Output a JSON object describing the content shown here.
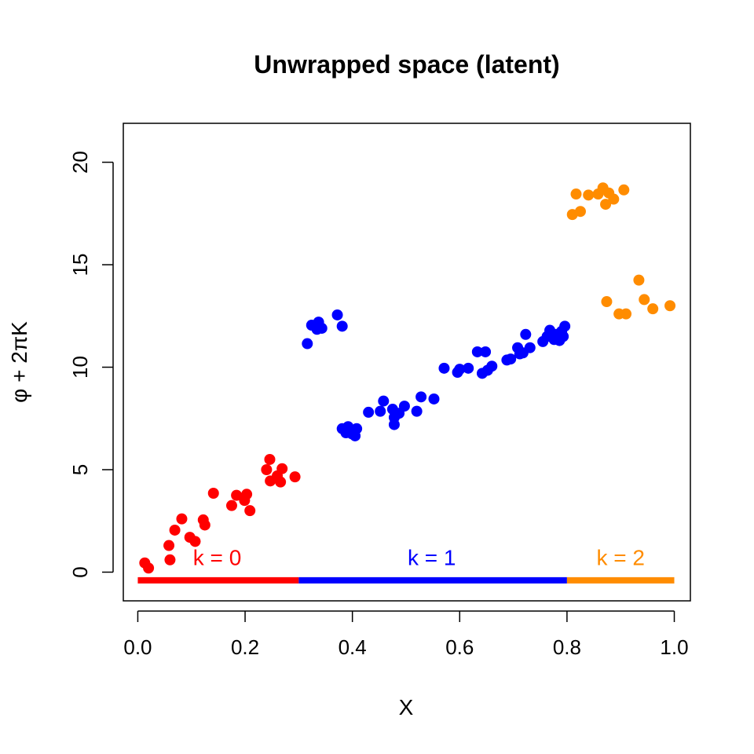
{
  "chart_data": {
    "type": "scatter",
    "title": "Unwrapped space (latent)",
    "xlabel": "X",
    "ylabel": "φ + 2πK",
    "xlim": [
      -0.027,
      1.03
    ],
    "ylim": [
      -1.4,
      21.9
    ],
    "x_ticks": [
      0.0,
      0.2,
      0.4,
      0.6,
      0.8,
      1.0
    ],
    "x_tick_labels": [
      "0.0",
      "0.2",
      "0.4",
      "0.6",
      "0.8",
      "1.0"
    ],
    "y_ticks": [
      0,
      5,
      10,
      15,
      20
    ],
    "y_tick_labels": [
      "0",
      "5",
      "10",
      "15",
      "20"
    ],
    "grid": false,
    "legend": "none",
    "series": [
      {
        "color": "#ff0000",
        "points": [
          [
            0.013,
            0.45
          ],
          [
            0.02,
            0.2
          ],
          [
            0.058,
            1.3
          ],
          [
            0.06,
            0.6
          ],
          [
            0.069,
            2.05
          ],
          [
            0.082,
            2.6
          ],
          [
            0.097,
            1.7
          ],
          [
            0.107,
            1.5
          ],
          [
            0.122,
            2.55
          ],
          [
            0.125,
            2.3
          ],
          [
            0.141,
            3.85
          ],
          [
            0.175,
            3.25
          ],
          [
            0.184,
            3.75
          ],
          [
            0.199,
            3.5
          ],
          [
            0.203,
            3.8
          ],
          [
            0.209,
            3.0
          ],
          [
            0.24,
            5.0
          ],
          [
            0.246,
            5.5
          ],
          [
            0.247,
            4.45
          ],
          [
            0.26,
            4.7
          ],
          [
            0.266,
            4.4
          ],
          [
            0.269,
            5.05
          ],
          [
            0.293,
            4.65
          ]
        ]
      },
      {
        "color": "#0000ff",
        "points": [
          [
            0.316,
            11.15
          ],
          [
            0.324,
            12.05
          ],
          [
            0.331,
            12.0
          ],
          [
            0.334,
            11.85
          ],
          [
            0.337,
            12.2
          ],
          [
            0.343,
            11.9
          ],
          [
            0.372,
            12.55
          ],
          [
            0.381,
            12.0
          ],
          [
            0.381,
            7.0
          ],
          [
            0.388,
            6.8
          ],
          [
            0.392,
            7.1
          ],
          [
            0.399,
            6.75
          ],
          [
            0.405,
            6.65
          ],
          [
            0.408,
            7.0
          ],
          [
            0.43,
            7.8
          ],
          [
            0.452,
            7.85
          ],
          [
            0.458,
            8.35
          ],
          [
            0.475,
            7.95
          ],
          [
            0.478,
            7.2
          ],
          [
            0.478,
            7.55
          ],
          [
            0.487,
            7.75
          ],
          [
            0.497,
            8.1
          ],
          [
            0.52,
            7.85
          ],
          [
            0.528,
            8.55
          ],
          [
            0.552,
            8.45
          ],
          [
            0.571,
            9.95
          ],
          [
            0.596,
            9.75
          ],
          [
            0.6,
            9.9
          ],
          [
            0.616,
            9.95
          ],
          [
            0.633,
            10.75
          ],
          [
            0.642,
            9.7
          ],
          [
            0.648,
            10.75
          ],
          [
            0.652,
            9.85
          ],
          [
            0.66,
            10.05
          ],
          [
            0.688,
            10.35
          ],
          [
            0.695,
            10.4
          ],
          [
            0.708,
            10.95
          ],
          [
            0.712,
            10.65
          ],
          [
            0.718,
            10.7
          ],
          [
            0.723,
            11.6
          ],
          [
            0.731,
            10.95
          ],
          [
            0.755,
            11.25
          ],
          [
            0.763,
            11.5
          ],
          [
            0.768,
            11.8
          ],
          [
            0.776,
            11.35
          ],
          [
            0.781,
            11.6
          ],
          [
            0.786,
            11.3
          ],
          [
            0.79,
            11.75
          ],
          [
            0.793,
            11.5
          ],
          [
            0.796,
            12.0
          ]
        ]
      },
      {
        "color": "#ff8c00",
        "points": [
          [
            0.81,
            17.45
          ],
          [
            0.817,
            18.45
          ],
          [
            0.825,
            17.6
          ],
          [
            0.84,
            18.4
          ],
          [
            0.858,
            18.45
          ],
          [
            0.867,
            18.75
          ],
          [
            0.872,
            17.95
          ],
          [
            0.874,
            13.2
          ],
          [
            0.878,
            18.5
          ],
          [
            0.887,
            18.2
          ],
          [
            0.897,
            12.6
          ],
          [
            0.906,
            18.65
          ],
          [
            0.91,
            12.6
          ],
          [
            0.934,
            14.25
          ],
          [
            0.944,
            13.3
          ],
          [
            0.96,
            12.85
          ],
          [
            0.992,
            13.0
          ]
        ]
      }
    ],
    "segments": [
      {
        "label": "k = 0",
        "color": "#ff0000",
        "x0": 0.0,
        "x1": 0.3,
        "y": -0.4,
        "label_x": 0.148,
        "label_y": 0.35
      },
      {
        "label": "k = 1",
        "color": "#0000ff",
        "x0": 0.3,
        "x1": 0.8,
        "y": -0.4,
        "label_x": 0.548,
        "label_y": 0.35
      },
      {
        "label": "k = 2",
        "color": "#ff8c00",
        "x0": 0.8,
        "x1": 1.0,
        "y": -0.4,
        "label_x": 0.9,
        "label_y": 0.35
      }
    ]
  }
}
